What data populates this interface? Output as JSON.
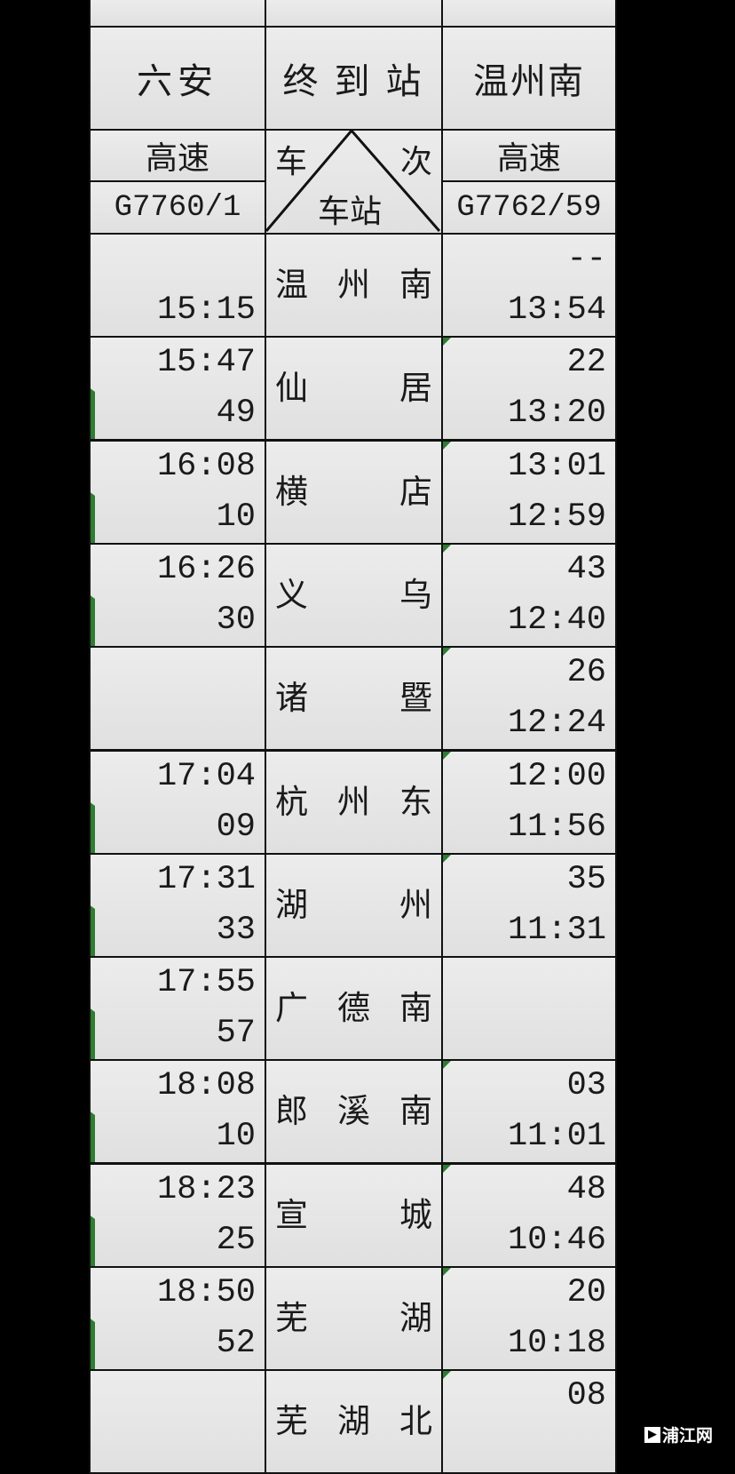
{
  "header": {
    "left_terminus": "六安",
    "middle_label": "终到站",
    "right_terminus": "温州南",
    "left_type": "高速",
    "right_type": "高速",
    "diag_top_left": "车",
    "diag_top_right": "次",
    "diag_bottom": "车站",
    "left_train": "G7760/1",
    "right_train": "G7762/59"
  },
  "rows": [
    {
      "station": "温州南",
      "left": [
        "",
        "15:15"
      ],
      "right": [
        "--",
        "13:54"
      ],
      "lmark": false,
      "rmark": false
    },
    {
      "station": "仙居",
      "left": [
        "15:47",
        "49"
      ],
      "right": [
        "22",
        "13:20"
      ],
      "lmark": true,
      "rmark": true
    },
    {
      "station": "横店",
      "left": [
        "16:08",
        "10"
      ],
      "right": [
        "13:01",
        "12:59"
      ],
      "lmark": true,
      "rmark": true
    },
    {
      "station": "义乌",
      "left": [
        "16:26",
        "30"
      ],
      "right": [
        "43",
        "12:40"
      ],
      "lmark": true,
      "rmark": true
    },
    {
      "station": "诸暨",
      "left": [
        "",
        ""
      ],
      "right": [
        "26",
        "12:24"
      ],
      "lmark": false,
      "rmark": true
    },
    {
      "station": "杭州东",
      "left": [
        "17:04",
        "09"
      ],
      "right": [
        "12:00",
        "11:56"
      ],
      "lmark": true,
      "rmark": true
    },
    {
      "station": "湖州",
      "left": [
        "17:31",
        "33"
      ],
      "right": [
        "35",
        "11:31"
      ],
      "lmark": true,
      "rmark": true
    },
    {
      "station": "广德南",
      "left": [
        "17:55",
        "57"
      ],
      "right": [
        "",
        ""
      ],
      "lmark": true,
      "rmark": false
    },
    {
      "station": "郎溪南",
      "left": [
        "18:08",
        "10"
      ],
      "right": [
        "03",
        "11:01"
      ],
      "lmark": true,
      "rmark": true
    },
    {
      "station": "宣城",
      "left": [
        "18:23",
        "25"
      ],
      "right": [
        "48",
        "10:46"
      ],
      "lmark": true,
      "rmark": true
    },
    {
      "station": "芜湖",
      "left": [
        "18:50",
        "52"
      ],
      "right": [
        "20",
        "10:18"
      ],
      "lmark": true,
      "rmark": true
    },
    {
      "station": "芜湖北",
      "left": [
        "",
        ""
      ],
      "right": [
        "08",
        ""
      ],
      "lmark": false,
      "rmark": true
    }
  ],
  "watermark": "浦江网",
  "colors": {
    "comment_marker": "#2e7d32",
    "background": "#000000",
    "cell": "#e6e6e6"
  }
}
